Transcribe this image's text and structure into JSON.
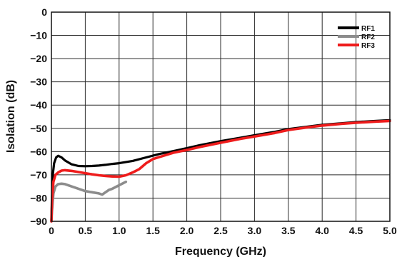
{
  "chart_data": {
    "type": "line",
    "title": "",
    "xlabel": "Frequency (GHz)",
    "ylabel": "Isolation (dB)",
    "xlim": [
      0,
      5.0
    ],
    "ylim": [
      -90,
      0
    ],
    "grid": true,
    "legend_position": "top-right",
    "xticks": [
      "0",
      "0.5",
      "1.0",
      "1.5",
      "2.0",
      "2.5",
      "3.0",
      "3.5",
      "4.0",
      "4.5",
      "5.0"
    ],
    "yticks": [
      "0",
      "−10",
      "−20",
      "−30",
      "−40",
      "−50",
      "−60",
      "−70",
      "−80",
      "−90"
    ],
    "series": [
      {
        "name": "RF1",
        "color": "#000000",
        "points": [
          [
            0.0,
            -90
          ],
          [
            0.01,
            -80
          ],
          [
            0.02,
            -70
          ],
          [
            0.04,
            -65
          ],
          [
            0.07,
            -62.5
          ],
          [
            0.1,
            -61.8
          ],
          [
            0.15,
            -62.5
          ],
          [
            0.2,
            -63.8
          ],
          [
            0.3,
            -65.5
          ],
          [
            0.4,
            -66.2
          ],
          [
            0.5,
            -66.3
          ],
          [
            0.6,
            -66.2
          ],
          [
            0.7,
            -66
          ],
          [
            0.8,
            -65.7
          ],
          [
            0.9,
            -65.3
          ],
          [
            1.0,
            -65
          ],
          [
            1.2,
            -64
          ],
          [
            1.4,
            -62.5
          ],
          [
            1.6,
            -61
          ],
          [
            1.8,
            -59.8
          ],
          [
            2.0,
            -58.5
          ],
          [
            2.2,
            -57.2
          ],
          [
            2.5,
            -55.5
          ],
          [
            2.8,
            -54
          ],
          [
            3.0,
            -53
          ],
          [
            3.3,
            -51.5
          ],
          [
            3.5,
            -50.3
          ],
          [
            3.8,
            -49.2
          ],
          [
            4.0,
            -48.5
          ],
          [
            4.3,
            -47.8
          ],
          [
            4.5,
            -47.3
          ],
          [
            4.8,
            -46.8
          ],
          [
            5.0,
            -46.5
          ]
        ]
      },
      {
        "name": "RF2",
        "color": "#8c8c8c",
        "points": [
          [
            0.0,
            -90
          ],
          [
            0.01,
            -85
          ],
          [
            0.03,
            -78
          ],
          [
            0.06,
            -75
          ],
          [
            0.1,
            -74
          ],
          [
            0.15,
            -73.8
          ],
          [
            0.2,
            -74
          ],
          [
            0.3,
            -75
          ],
          [
            0.4,
            -76
          ],
          [
            0.5,
            -77
          ],
          [
            0.6,
            -77.5
          ],
          [
            0.7,
            -78
          ],
          [
            0.75,
            -78.5
          ],
          [
            0.8,
            -77.5
          ],
          [
            0.85,
            -76.5
          ],
          [
            0.9,
            -76
          ],
          [
            1.0,
            -74.5
          ],
          [
            1.1,
            -73
          ]
        ]
      },
      {
        "name": "RF3",
        "color": "#ee1c1c",
        "points": [
          [
            0.0,
            -90
          ],
          [
            0.01,
            -80
          ],
          [
            0.03,
            -73
          ],
          [
            0.06,
            -70
          ],
          [
            0.1,
            -69
          ],
          [
            0.15,
            -68.2
          ],
          [
            0.2,
            -68
          ],
          [
            0.3,
            -68.3
          ],
          [
            0.4,
            -68.8
          ],
          [
            0.5,
            -69.3
          ],
          [
            0.6,
            -69.8
          ],
          [
            0.7,
            -70.2
          ],
          [
            0.8,
            -70.5
          ],
          [
            0.9,
            -70.7
          ],
          [
            1.0,
            -70.8
          ],
          [
            1.1,
            -70.2
          ],
          [
            1.2,
            -69
          ],
          [
            1.3,
            -67.5
          ],
          [
            1.4,
            -65
          ],
          [
            1.5,
            -63.2
          ],
          [
            1.6,
            -62.3
          ],
          [
            1.8,
            -60.5
          ],
          [
            2.0,
            -59.3
          ],
          [
            2.2,
            -58
          ],
          [
            2.5,
            -56.2
          ],
          [
            2.8,
            -54.5
          ],
          [
            3.0,
            -53.5
          ],
          [
            3.3,
            -52
          ],
          [
            3.5,
            -50.7
          ],
          [
            3.8,
            -49.5
          ],
          [
            4.0,
            -48.8
          ],
          [
            4.3,
            -48
          ],
          [
            4.5,
            -47.6
          ],
          [
            4.8,
            -47.1
          ],
          [
            5.0,
            -46.8
          ]
        ]
      }
    ]
  }
}
